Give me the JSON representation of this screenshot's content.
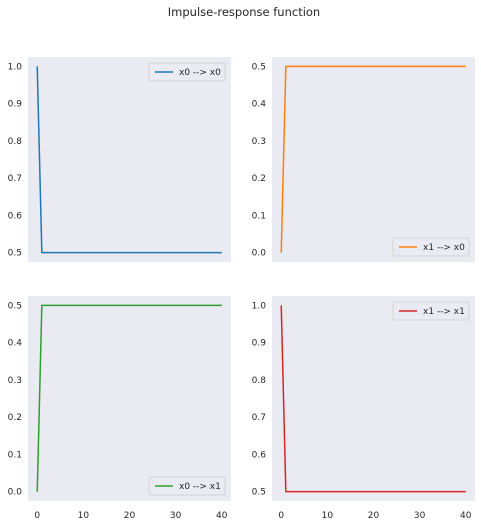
{
  "title": "Impulse-response function",
  "chart_data": [
    {
      "type": "line",
      "xlim": [
        -2,
        42
      ],
      "ylim": [
        0.475,
        1.025
      ],
      "xticks": [
        0,
        10,
        20,
        30,
        40
      ],
      "yticks": [
        0.5,
        0.6,
        0.7,
        0.8,
        0.9,
        1.0
      ],
      "ytick_labels": [
        "0.5",
        "0.6",
        "0.7",
        "0.8",
        "0.9",
        "1.0"
      ],
      "xticks_visible": false,
      "legend_position": "top-right",
      "grid": false,
      "series": [
        {
          "name": "x0 --> x0",
          "color": "#1f77b4",
          "x": [
            0,
            1,
            40
          ],
          "y": [
            1.0,
            0.5,
            0.5
          ]
        }
      ]
    },
    {
      "type": "line",
      "xlim": [
        -2,
        42
      ],
      "ylim": [
        -0.025,
        0.525
      ],
      "xticks": [
        0,
        10,
        20,
        30,
        40
      ],
      "yticks": [
        0.0,
        0.1,
        0.2,
        0.3,
        0.4,
        0.5
      ],
      "ytick_labels": [
        "0.0",
        "0.1",
        "0.2",
        "0.3",
        "0.4",
        "0.5"
      ],
      "xticks_visible": false,
      "legend_position": "bottom-right",
      "grid": false,
      "series": [
        {
          "name": "x1 --> x0",
          "color": "#ff7f0e",
          "x": [
            0,
            1,
            40
          ],
          "y": [
            0.0,
            0.5,
            0.5
          ]
        }
      ]
    },
    {
      "type": "line",
      "xlim": [
        -2,
        42
      ],
      "ylim": [
        -0.025,
        0.525
      ],
      "xticks": [
        0,
        10,
        20,
        30,
        40
      ],
      "xtick_labels": [
        "0",
        "10",
        "20",
        "30",
        "40"
      ],
      "yticks": [
        0.0,
        0.1,
        0.2,
        0.3,
        0.4,
        0.5
      ],
      "ytick_labels": [
        "0.0",
        "0.1",
        "0.2",
        "0.3",
        "0.4",
        "0.5"
      ],
      "xticks_visible": true,
      "legend_position": "bottom-right",
      "grid": false,
      "series": [
        {
          "name": "x0 --> x1",
          "color": "#2ca02c",
          "x": [
            0,
            1,
            40
          ],
          "y": [
            0.0,
            0.5,
            0.5
          ]
        }
      ]
    },
    {
      "type": "line",
      "xlim": [
        -2,
        42
      ],
      "ylim": [
        0.475,
        1.025
      ],
      "xticks": [
        0,
        10,
        20,
        30,
        40
      ],
      "xtick_labels": [
        "0",
        "10",
        "20",
        "30",
        "40"
      ],
      "yticks": [
        0.5,
        0.6,
        0.7,
        0.8,
        0.9,
        1.0
      ],
      "ytick_labels": [
        "0.5",
        "0.6",
        "0.7",
        "0.8",
        "0.9",
        "1.0"
      ],
      "xticks_visible": true,
      "legend_position": "top-right",
      "grid": false,
      "series": [
        {
          "name": "x1 --> x1",
          "color": "#d62728",
          "x": [
            0,
            1,
            40
          ],
          "y": [
            1.0,
            0.5,
            0.5
          ]
        }
      ]
    }
  ],
  "colors": {
    "panel_background": "#eaeaf2",
    "tick_text": "#262626",
    "legend_border": "#cccccc"
  }
}
